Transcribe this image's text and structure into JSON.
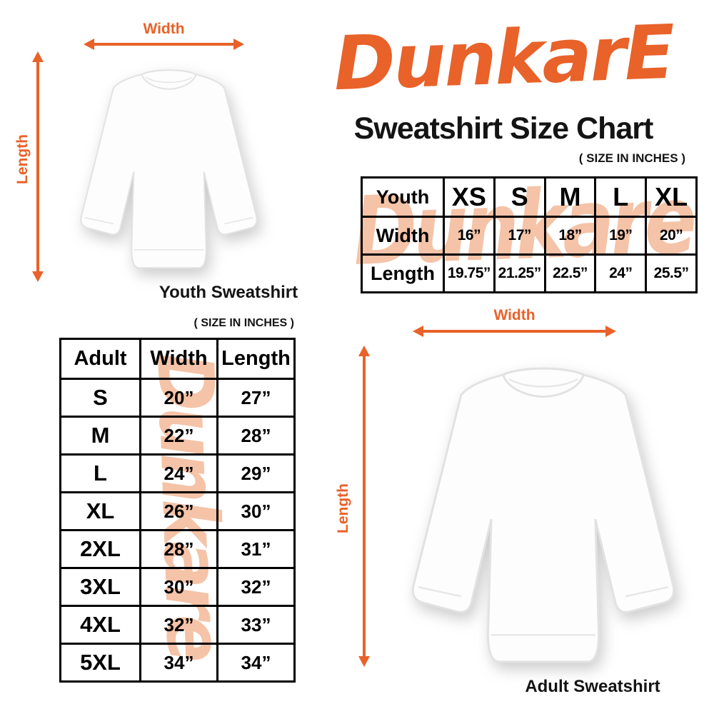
{
  "brand": {
    "logo_text": "DunkarE",
    "title": "Sweatshirt Size Chart",
    "size_note": "( SIZE IN INCHES )",
    "watermark_text": "Dunkare",
    "accent_color": "#E8622A",
    "watermark_color": "#F5C3A7"
  },
  "youth_diagram": {
    "width_label": "Width",
    "length_label": "Length",
    "caption": "Youth Sweatshirt"
  },
  "adult_diagram": {
    "width_label": "Width",
    "length_label": "Length",
    "caption": "Adult Sweatshirt"
  },
  "youth_table": {
    "size_note": "( SIZE IN INCHES )",
    "header": [
      "Youth",
      "XS",
      "S",
      "M",
      "L",
      "XL"
    ],
    "rows": [
      [
        "Width",
        "16”",
        "17”",
        "18”",
        "19”",
        "20”"
      ],
      [
        "Length",
        "19.75”",
        "21.25”",
        "22.5”",
        "24”",
        "25.5”"
      ]
    ]
  },
  "adult_table": {
    "size_note": "( SIZE IN INCHES )",
    "header": [
      "Adult",
      "Width",
      "Length"
    ],
    "rows": [
      [
        "S",
        "20”",
        "27”"
      ],
      [
        "M",
        "22”",
        "28”"
      ],
      [
        "L",
        "24”",
        "29”"
      ],
      [
        "XL",
        "26”",
        "30”"
      ],
      [
        "2XL",
        "28”",
        "31”"
      ],
      [
        "3XL",
        "30”",
        "32”"
      ],
      [
        "4XL",
        "32”",
        "33”"
      ],
      [
        "5XL",
        "34”",
        "34”"
      ]
    ]
  }
}
